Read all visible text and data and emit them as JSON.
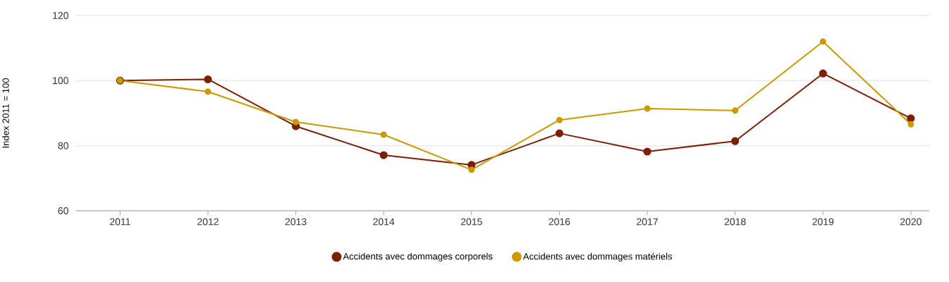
{
  "chart_data": {
    "type": "line",
    "ylabel": "Index 2011 = 100",
    "categories": [
      "2011",
      "2012",
      "2013",
      "2014",
      "2015",
      "2016",
      "2017",
      "2018",
      "2019",
      "2020"
    ],
    "series": [
      {
        "name": "Accidents avec dommages corporels",
        "color": "#7f1d05",
        "values": [
          100,
          100.4,
          86,
          77.1,
          74.1,
          83.8,
          78.2,
          81.4,
          102.2,
          88.4
        ]
      },
      {
        "name": "Accidents avec dommages matériels",
        "color": "#cc9900",
        "values": [
          100,
          96.6,
          87.3,
          83.4,
          72.6,
          87.9,
          91.4,
          90.8,
          112,
          86.6
        ]
      }
    ],
    "ylim": [
      60,
      120
    ],
    "yticks": [
      60,
      80,
      100,
      120
    ],
    "grid": "y",
    "legend": "bottom",
    "marker": "circle",
    "line_style": "solid"
  }
}
